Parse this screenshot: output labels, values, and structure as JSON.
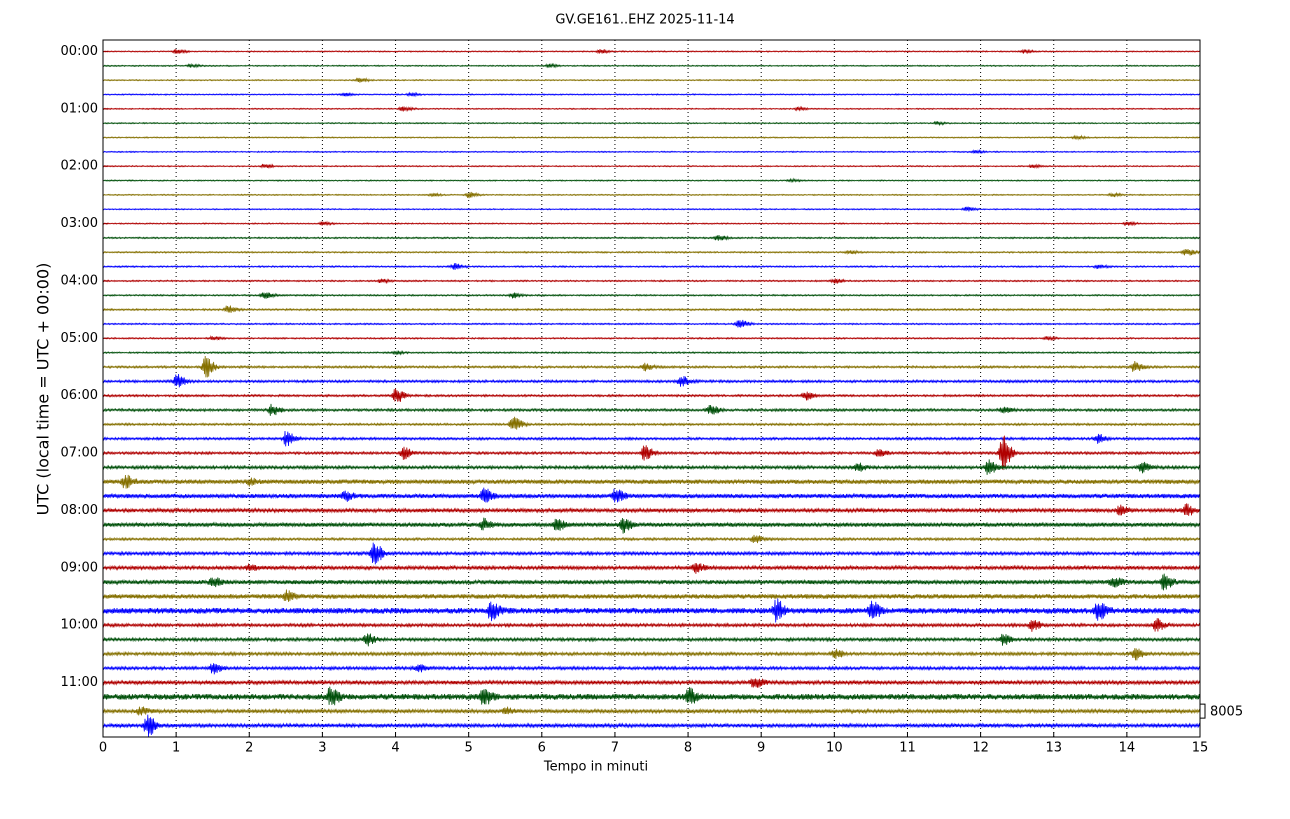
{
  "chart_data": {
    "type": "helicorder",
    "title": "GV.GE161..EHZ 2025-11-14",
    "xlabel": "Tempo in minuti",
    "ylabel": "UTC (local time = UTC + 00:00)",
    "xlim": [
      0,
      15
    ],
    "xticks": [
      0,
      1,
      2,
      3,
      4,
      5,
      6,
      7,
      8,
      9,
      10,
      11,
      12,
      13,
      14,
      15
    ],
    "ylim": [
      -0.8,
      47.8
    ],
    "yticks": [
      {
        "value": 0,
        "label": "00:00"
      },
      {
        "value": 4,
        "label": "01:00"
      },
      {
        "value": 8,
        "label": "02:00"
      },
      {
        "value": 12,
        "label": "03:00"
      },
      {
        "value": 16,
        "label": "04:00"
      },
      {
        "value": 20,
        "label": "05:00"
      },
      {
        "value": 24,
        "label": "06:00"
      },
      {
        "value": 28,
        "label": "07:00"
      },
      {
        "value": 32,
        "label": "08:00"
      },
      {
        "value": 36,
        "label": "09:00"
      },
      {
        "value": 40,
        "label": "10:00"
      },
      {
        "value": 44,
        "label": "11:00"
      }
    ],
    "grid": true,
    "colors": [
      "#b00000",
      "#00500a",
      "#857000",
      "#0000ff"
    ],
    "scale": 8005,
    "traces": [
      {
        "noise": 0.04,
        "events": [
          [
            1,
            0.15
          ],
          [
            6.8,
            0.15
          ],
          [
            12.6,
            0.12
          ]
        ]
      },
      {
        "noise": 0.04,
        "events": [
          [
            1.2,
            0.1
          ],
          [
            6.1,
            0.1
          ]
        ]
      },
      {
        "noise": 0.04,
        "events": [
          [
            3.5,
            0.15
          ]
        ]
      },
      {
        "noise": 0.04,
        "events": [
          [
            3.3,
            0.1
          ],
          [
            4.2,
            0.1
          ]
        ]
      },
      {
        "noise": 0.04,
        "events": [
          [
            4.1,
            0.15
          ],
          [
            9.5,
            0.1
          ]
        ]
      },
      {
        "noise": 0.04,
        "events": [
          [
            11.4,
            0.1
          ]
        ]
      },
      {
        "noise": 0.04,
        "events": [
          [
            13.3,
            0.12
          ]
        ]
      },
      {
        "noise": 0.04,
        "events": [
          [
            11.9,
            0.1
          ]
        ]
      },
      {
        "noise": 0.04,
        "events": [
          [
            2.2,
            0.15
          ],
          [
            12.7,
            0.1
          ]
        ]
      },
      {
        "noise": 0.04,
        "events": [
          [
            9.4,
            0.1
          ]
        ]
      },
      {
        "noise": 0.04,
        "events": [
          [
            5.0,
            0.2
          ],
          [
            4.5,
            0.1
          ],
          [
            13.8,
            0.12
          ]
        ]
      },
      {
        "noise": 0.04,
        "events": [
          [
            11.8,
            0.15
          ]
        ]
      },
      {
        "noise": 0.04,
        "events": [
          [
            3,
            0.12
          ],
          [
            14,
            0.12
          ]
        ]
      },
      {
        "noise": 0.05,
        "events": [
          [
            8.4,
            0.2
          ]
        ]
      },
      {
        "noise": 0.05,
        "events": [
          [
            14.8,
            0.25
          ],
          [
            10.2,
            0.1
          ]
        ]
      },
      {
        "noise": 0.05,
        "events": [
          [
            4.8,
            0.2
          ],
          [
            13.6,
            0.12
          ]
        ]
      },
      {
        "noise": 0.05,
        "events": [
          [
            3.8,
            0.12
          ],
          [
            10,
            0.15
          ]
        ]
      },
      {
        "noise": 0.05,
        "events": [
          [
            2.2,
            0.2
          ],
          [
            5.6,
            0.2
          ]
        ]
      },
      {
        "noise": 0.06,
        "events": [
          [
            1.7,
            0.25
          ]
        ]
      },
      {
        "noise": 0.05,
        "events": [
          [
            8.7,
            0.3
          ]
        ]
      },
      {
        "noise": 0.05,
        "events": [
          [
            1.5,
            0.12
          ],
          [
            12.9,
            0.1
          ]
        ]
      },
      {
        "noise": 0.05,
        "events": [
          [
            4,
            0.1
          ]
        ]
      },
      {
        "noise": 0.07,
        "events": [
          [
            1.4,
            0.7
          ],
          [
            7.4,
            0.25
          ],
          [
            14.1,
            0.35
          ]
        ]
      },
      {
        "noise": 0.08,
        "events": [
          [
            1.0,
            0.5
          ],
          [
            7.9,
            0.35
          ]
        ]
      },
      {
        "noise": 0.07,
        "events": [
          [
            4,
            0.5
          ],
          [
            9.6,
            0.3
          ]
        ]
      },
      {
        "noise": 0.08,
        "events": [
          [
            2.3,
            0.4
          ],
          [
            8.3,
            0.35
          ],
          [
            12.3,
            0.2
          ]
        ]
      },
      {
        "noise": 0.07,
        "events": [
          [
            5.6,
            0.6
          ]
        ]
      },
      {
        "noise": 0.08,
        "events": [
          [
            2.5,
            0.5
          ],
          [
            13.6,
            0.3
          ]
        ]
      },
      {
        "noise": 0.08,
        "events": [
          [
            4.1,
            0.4
          ],
          [
            7.4,
            0.5
          ],
          [
            12.3,
            1.2
          ],
          [
            10.6,
            0.25
          ]
        ]
      },
      {
        "noise": 0.1,
        "events": [
          [
            12.1,
            0.5
          ],
          [
            14.2,
            0.35
          ],
          [
            10.3,
            0.3
          ]
        ]
      },
      {
        "noise": 0.15,
        "events": [
          [
            0.3,
            0.4
          ],
          [
            2.0,
            0.2
          ]
        ]
      },
      {
        "noise": 0.15,
        "events": [
          [
            5.2,
            0.5
          ],
          [
            7,
            0.4
          ],
          [
            3.3,
            0.3
          ]
        ]
      },
      {
        "noise": 0.12,
        "events": [
          [
            14.8,
            0.4
          ],
          [
            13.9,
            0.3
          ]
        ]
      },
      {
        "noise": 0.14,
        "events": [
          [
            5.2,
            0.35
          ],
          [
            7.1,
            0.5
          ],
          [
            6.2,
            0.35
          ]
        ]
      },
      {
        "noise": 0.08,
        "events": [
          [
            8.9,
            0.3
          ]
        ]
      },
      {
        "noise": 0.1,
        "events": [
          [
            3.7,
            0.8
          ]
        ]
      },
      {
        "noise": 0.12,
        "events": [
          [
            8.1,
            0.35
          ],
          [
            2.0,
            0.2
          ]
        ]
      },
      {
        "noise": 0.14,
        "events": [
          [
            13.8,
            0.4
          ],
          [
            14.5,
            0.5
          ],
          [
            1.5,
            0.3
          ]
        ]
      },
      {
        "noise": 0.16,
        "events": [
          [
            2.5,
            0.35
          ]
        ]
      },
      {
        "noise": 0.2,
        "events": [
          [
            5.3,
            0.6
          ],
          [
            9.2,
            0.7
          ],
          [
            10.5,
            0.6
          ],
          [
            13.6,
            0.6
          ]
        ]
      },
      {
        "noise": 0.1,
        "events": [
          [
            12.7,
            0.4
          ],
          [
            14.4,
            0.4
          ]
        ]
      },
      {
        "noise": 0.1,
        "events": [
          [
            3.6,
            0.4
          ],
          [
            12.3,
            0.35
          ]
        ]
      },
      {
        "noise": 0.1,
        "events": [
          [
            14.1,
            0.4
          ],
          [
            10,
            0.3
          ]
        ]
      },
      {
        "noise": 0.1,
        "events": [
          [
            1.5,
            0.35
          ],
          [
            4.3,
            0.25
          ]
        ]
      },
      {
        "noise": 0.12,
        "events": [
          [
            8.9,
            0.45
          ]
        ]
      },
      {
        "noise": 0.2,
        "events": [
          [
            3.1,
            0.6
          ],
          [
            5.2,
            0.5
          ],
          [
            8,
            0.5
          ]
        ]
      },
      {
        "noise": 0.12,
        "events": [
          [
            0.5,
            0.25
          ],
          [
            5.5,
            0.25
          ]
        ]
      },
      {
        "noise": 0.12,
        "events": [
          [
            0.6,
            0.7
          ]
        ]
      }
    ]
  }
}
